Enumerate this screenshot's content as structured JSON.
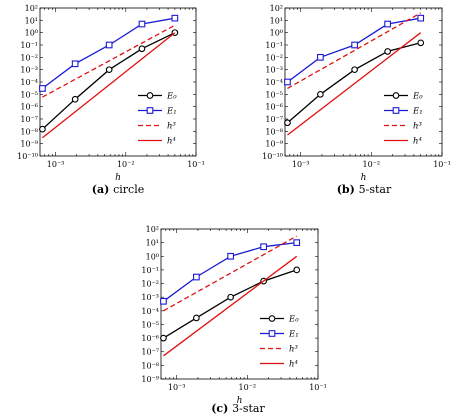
{
  "chart_data": [
    {
      "id": "a",
      "type": "line",
      "x_scale": "log",
      "y_scale": "log",
      "xlim": [
        0.0006,
        0.1
      ],
      "ylim": [
        1e-10,
        100
      ],
      "xlabel": "h",
      "x_ticks": [
        {
          "value": 0.001,
          "label": "10⁻³"
        },
        {
          "value": 0.01,
          "label": "10⁻²"
        },
        {
          "value": 0.1,
          "label": "10⁻¹"
        }
      ],
      "y_tick_exponents": [
        -10,
        -9,
        -8,
        -7,
        -6,
        -5,
        -4,
        -3,
        -2,
        -1,
        0,
        1,
        2
      ],
      "legend_position": "bottom-right",
      "caption": {
        "label": "(a)",
        "text": "circle"
      },
      "series": [
        {
          "name": "E₀",
          "color": "#000000",
          "marker": "circle",
          "dash": "",
          "x": [
            0.00065,
            0.0019,
            0.0058,
            0.017,
            0.05
          ],
          "y": [
            1.5e-08,
            4e-06,
            0.001,
            0.05,
            1
          ]
        },
        {
          "name": "E₁",
          "color": "#1a1ad6",
          "marker": "square",
          "dash": "",
          "x": [
            0.00065,
            0.0019,
            0.0058,
            0.017,
            0.05
          ],
          "y": [
            3e-05,
            0.003,
            0.1,
            5,
            15
          ]
        },
        {
          "name": "h³",
          "color": "#e01010",
          "marker": "",
          "dash": "5,3",
          "x": [
            0.00065,
            0.05
          ],
          "y": [
            6e-06,
            4
          ]
        },
        {
          "name": "h⁴",
          "color": "#e01010",
          "marker": "",
          "dash": "",
          "x": [
            0.00065,
            0.05
          ],
          "y": [
            3e-09,
            1
          ]
        }
      ]
    },
    {
      "id": "b",
      "type": "line",
      "x_scale": "log",
      "y_scale": "log",
      "xlim": [
        0.0006,
        0.1
      ],
      "ylim": [
        1e-10,
        100
      ],
      "xlabel": "h",
      "x_ticks": [
        {
          "value": 0.001,
          "label": "10⁻³"
        },
        {
          "value": 0.01,
          "label": "10⁻²"
        },
        {
          "value": 0.1,
          "label": "10⁻¹"
        }
      ],
      "y_tick_exponents": [
        -10,
        -9,
        -8,
        -7,
        -6,
        -5,
        -4,
        -3,
        -2,
        -1,
        0,
        1,
        2
      ],
      "legend_position": "bottom-right",
      "caption": {
        "label": "(b)",
        "text": "5-star"
      },
      "series": [
        {
          "name": "E₀",
          "color": "#000000",
          "marker": "circle",
          "dash": "",
          "x": [
            0.00065,
            0.0019,
            0.0058,
            0.017,
            0.05
          ],
          "y": [
            5e-08,
            1e-05,
            0.001,
            0.03,
            0.15
          ]
        },
        {
          "name": "E₁",
          "color": "#1a1ad6",
          "marker": "square",
          "dash": "",
          "x": [
            0.00065,
            0.0019,
            0.0058,
            0.017,
            0.05
          ],
          "y": [
            0.0001,
            0.01,
            0.1,
            5,
            15
          ]
        },
        {
          "name": "h³",
          "color": "#e01010",
          "marker": "",
          "dash": "5,3",
          "x": [
            0.00065,
            0.05
          ],
          "y": [
            3e-05,
            40
          ]
        },
        {
          "name": "h⁴",
          "color": "#e01010",
          "marker": "",
          "dash": "",
          "x": [
            0.00065,
            0.05
          ],
          "y": [
            5e-09,
            1
          ]
        }
      ]
    },
    {
      "id": "c",
      "type": "line",
      "x_scale": "log",
      "y_scale": "log",
      "xlim": [
        0.0006,
        0.1
      ],
      "ylim": [
        1e-09,
        100
      ],
      "xlabel": "h",
      "x_ticks": [
        {
          "value": 0.001,
          "label": "10⁻³"
        },
        {
          "value": 0.01,
          "label": "10⁻²"
        },
        {
          "value": 0.1,
          "label": "10⁻¹"
        }
      ],
      "y_tick_exponents": [
        -9,
        -8,
        -7,
        -6,
        -5,
        -4,
        -3,
        -2,
        -1,
        0,
        1,
        2
      ],
      "legend_position": "bottom-right",
      "caption": {
        "label": "(c)",
        "text": "3-star"
      },
      "series": [
        {
          "name": "E₀",
          "color": "#000000",
          "marker": "circle",
          "dash": "",
          "x": [
            0.00065,
            0.0019,
            0.0058,
            0.017,
            0.05
          ],
          "y": [
            1e-06,
            3e-05,
            0.001,
            0.015,
            0.1
          ]
        },
        {
          "name": "E₁",
          "color": "#1a1ad6",
          "marker": "square",
          "dash": "",
          "x": [
            0.00065,
            0.0019,
            0.0058,
            0.017,
            0.05
          ],
          "y": [
            0.0005,
            0.03,
            1,
            5,
            10
          ]
        },
        {
          "name": "h³",
          "color": "#e01010",
          "marker": "",
          "dash": "5,3",
          "x": [
            0.00065,
            0.05
          ],
          "y": [
            0.0001,
            30
          ]
        },
        {
          "name": "h⁴",
          "color": "#e01010",
          "marker": "",
          "dash": "",
          "x": [
            0.00065,
            0.05
          ],
          "y": [
            5e-08,
            1
          ]
        }
      ]
    }
  ]
}
